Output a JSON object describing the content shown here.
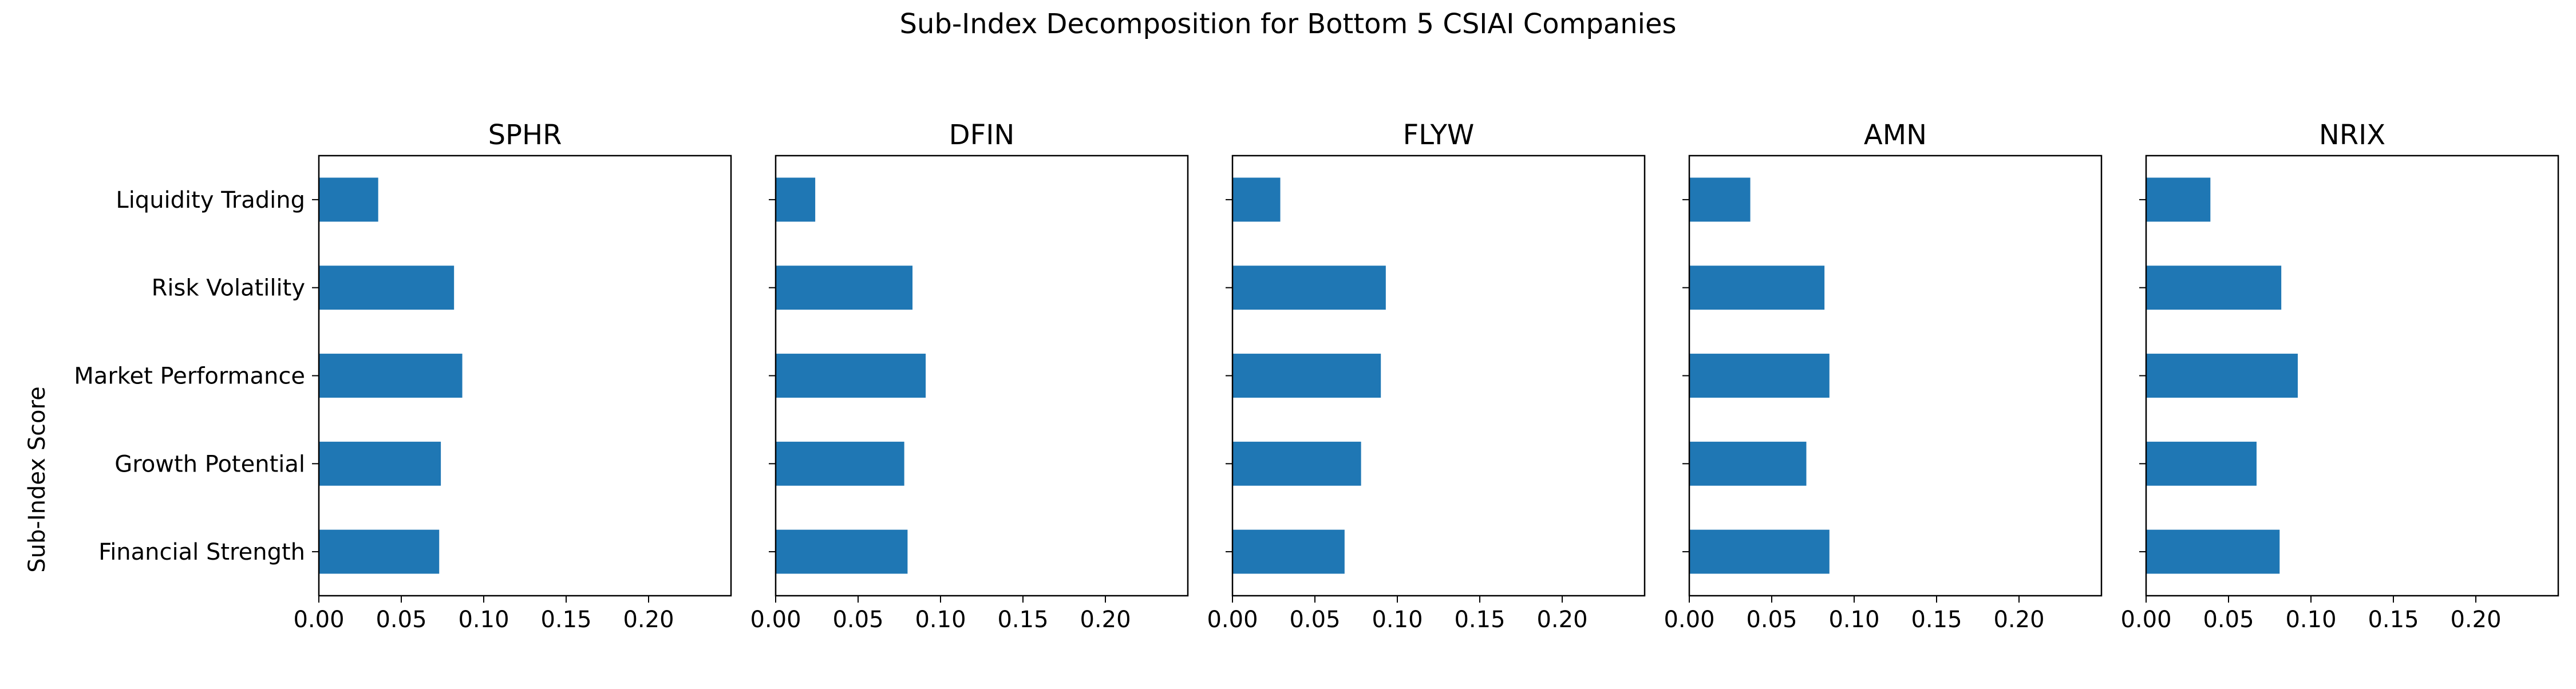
{
  "figure": {
    "suptitle": "Sub-Index Decomposition for Bottom 5 CSIAI Companies",
    "ylabel": "Sub-Index Score"
  },
  "colors": {
    "bar": "#1f77b4",
    "axis": "#000000",
    "background": "#ffffff"
  },
  "chart_data": [
    {
      "type": "bar",
      "orientation": "horizontal",
      "title": "SPHR",
      "categories": [
        "Financial Strength",
        "Growth Potential",
        "Market Performance",
        "Risk Volatility",
        "Liquidity Trading"
      ],
      "values": [
        0.073,
        0.074,
        0.087,
        0.082,
        0.036
      ],
      "xlim": [
        0,
        0.25
      ],
      "xticks": [
        "0.00",
        "0.05",
        "0.10",
        "0.15",
        "0.20"
      ],
      "grid": false
    },
    {
      "type": "bar",
      "orientation": "horizontal",
      "title": "DFIN",
      "categories": [
        "Financial Strength",
        "Growth Potential",
        "Market Performance",
        "Risk Volatility",
        "Liquidity Trading"
      ],
      "values": [
        0.08,
        0.078,
        0.091,
        0.083,
        0.024
      ],
      "xlim": [
        0,
        0.25
      ],
      "xticks": [
        "0.00",
        "0.05",
        "0.10",
        "0.15",
        "0.20"
      ],
      "grid": false
    },
    {
      "type": "bar",
      "orientation": "horizontal",
      "title": "FLYW",
      "categories": [
        "Financial Strength",
        "Growth Potential",
        "Market Performance",
        "Risk Volatility",
        "Liquidity Trading"
      ],
      "values": [
        0.068,
        0.078,
        0.09,
        0.093,
        0.029
      ],
      "xlim": [
        0,
        0.25
      ],
      "xticks": [
        "0.00",
        "0.05",
        "0.10",
        "0.15",
        "0.20"
      ],
      "grid": false
    },
    {
      "type": "bar",
      "orientation": "horizontal",
      "title": "AMN",
      "categories": [
        "Financial Strength",
        "Growth Potential",
        "Market Performance",
        "Risk Volatility",
        "Liquidity Trading"
      ],
      "values": [
        0.085,
        0.071,
        0.085,
        0.082,
        0.037
      ],
      "xlim": [
        0,
        0.25
      ],
      "xticks": [
        "0.00",
        "0.05",
        "0.10",
        "0.15",
        "0.20"
      ],
      "grid": false
    },
    {
      "type": "bar",
      "orientation": "horizontal",
      "title": "NRIX",
      "categories": [
        "Financial Strength",
        "Growth Potential",
        "Market Performance",
        "Risk Volatility",
        "Liquidity Trading"
      ],
      "values": [
        0.081,
        0.067,
        0.092,
        0.082,
        0.039
      ],
      "xlim": [
        0,
        0.25
      ],
      "xticks": [
        "0.00",
        "0.05",
        "0.10",
        "0.15",
        "0.20"
      ],
      "grid": false
    }
  ]
}
